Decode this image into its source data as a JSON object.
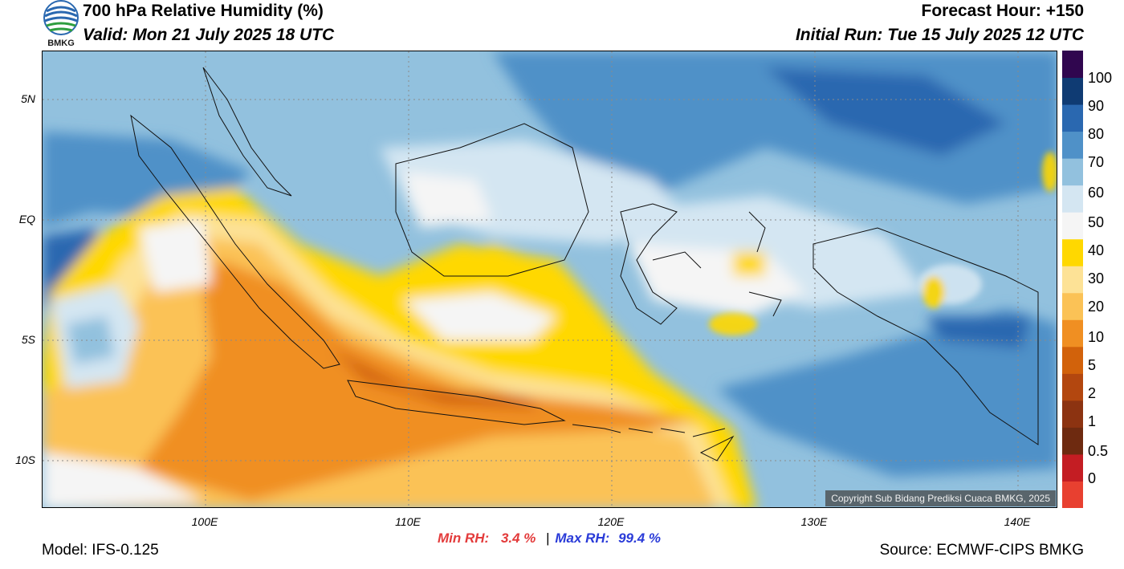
{
  "header": {
    "title": "700 hPa Relative Humidity (%)",
    "valid": "Valid: Mon 21 July 2025 18 UTC",
    "forecast_hour": "Forecast Hour: +150",
    "initial_run": "Initial Run: Tue 15 July 2025 12 UTC"
  },
  "logo": {
    "label": "BMKG"
  },
  "map": {
    "lat_labels": [
      "5N",
      "EQ",
      "5S",
      "10S"
    ],
    "lon_labels": [
      "100E",
      "110E",
      "120E",
      "130E",
      "140E"
    ],
    "copyright": "Copyright Sub Bidang Prediksi Cuaca BMKG, 2025"
  },
  "colorbar": {
    "labels": [
      "100",
      "90",
      "80",
      "70",
      "60",
      "50",
      "40",
      "30",
      "20",
      "10",
      "5",
      "2",
      "1",
      "0.5",
      "0"
    ],
    "colors": [
      "#e84030",
      "#c41d23",
      "#6e2a10",
      "#8c3311",
      "#b3470f",
      "#d2620b",
      "#f08f22",
      "#fbc256",
      "#fde296",
      "#ffd800",
      "#f5f5f5",
      "#d4e6f2",
      "#92c1de",
      "#4f91c8",
      "#2a68b0",
      "#0f3b73",
      "#30064f"
    ]
  },
  "stats": {
    "min_label": "Min RH:",
    "min_value": "3.4 %",
    "separator": "|",
    "max_label": "Max RH:",
    "max_value": "99.4 %"
  },
  "footer": {
    "model": "Model: IFS-0.125",
    "source": "Source: ECMWF-CIPS BMKG"
  }
}
